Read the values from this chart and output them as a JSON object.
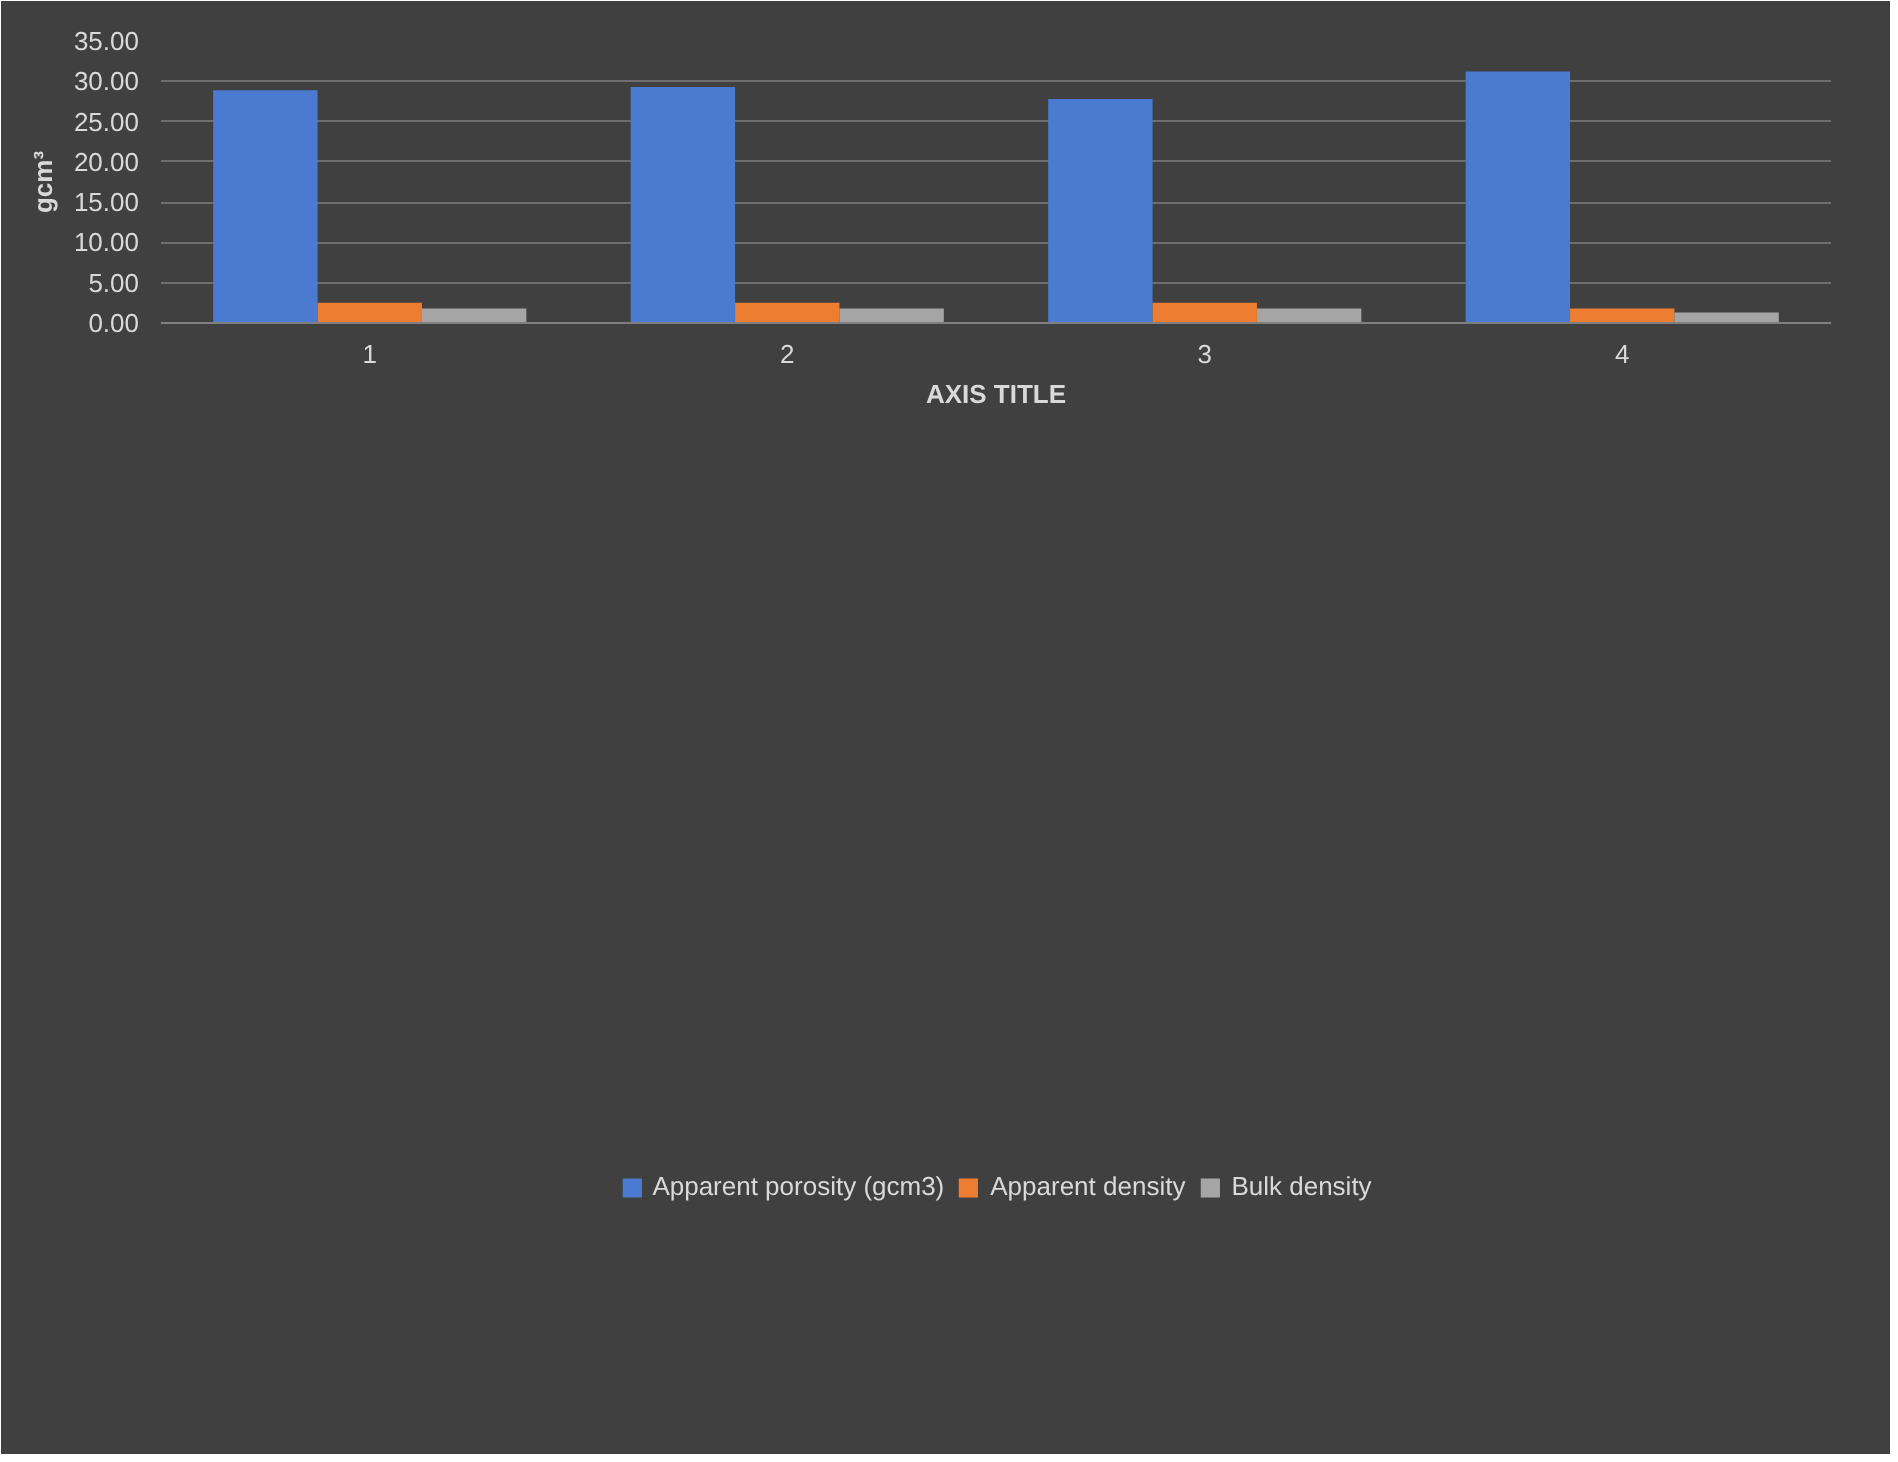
{
  "chart_data": {
    "type": "bar",
    "xlabel": "AXIS TITLE",
    "ylabel": "gcm³",
    "categories": [
      "1",
      "2",
      "3",
      "4"
    ],
    "series": [
      {
        "name": "Apparent porosity (gcm3)",
        "color": "#4a7bd0",
        "values": [
          28.9,
          29.3,
          27.8,
          31.2
        ]
      },
      {
        "name": "Apparent density",
        "color": "#ed7d31",
        "values": [
          2.5,
          2.5,
          2.5,
          1.8
        ]
      },
      {
        "name": "Bulk density",
        "color": "#a5a5a5",
        "values": [
          1.8,
          1.8,
          1.8,
          1.3
        ]
      }
    ],
    "ylim": [
      0,
      35
    ],
    "yticks": [
      {
        "value": 0,
        "label": "0.00"
      },
      {
        "value": 5,
        "label": "5.00"
      },
      {
        "value": 10,
        "label": "10.00"
      },
      {
        "value": 15,
        "label": "15.00"
      },
      {
        "value": 20,
        "label": "20.00"
      },
      {
        "value": 25,
        "label": "25.00"
      },
      {
        "value": 30,
        "label": "30.00"
      },
      {
        "value": 35,
        "label": "35.00"
      }
    ],
    "grid": "y",
    "legend": "bottom"
  }
}
